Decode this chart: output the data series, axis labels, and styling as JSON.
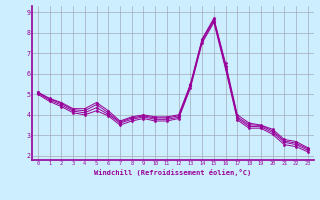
{
  "title": "",
  "xlabel": "Windchill (Refroidissement éolien,°C)",
  "ylabel": "",
  "background_color": "#cceeff",
  "grid_color": "#9999aa",
  "line_color": "#990099",
  "xlim": [
    -0.5,
    23.5
  ],
  "ylim": [
    1.8,
    9.3
  ],
  "xticks": [
    0,
    1,
    2,
    3,
    4,
    5,
    6,
    7,
    8,
    9,
    10,
    11,
    12,
    13,
    14,
    15,
    16,
    17,
    18,
    19,
    20,
    21,
    22,
    23
  ],
  "yticks": [
    2,
    3,
    4,
    5,
    6,
    7,
    8,
    9
  ],
  "series": [
    [
      5.1,
      4.8,
      4.6,
      4.3,
      4.3,
      4.6,
      4.2,
      3.7,
      3.9,
      4.0,
      3.9,
      3.9,
      4.0,
      5.5,
      7.7,
      8.7,
      6.5,
      4.0,
      3.6,
      3.5,
      3.3,
      2.8,
      2.7,
      2.4
    ],
    [
      5.1,
      4.78,
      4.55,
      4.25,
      4.2,
      4.5,
      4.1,
      3.65,
      3.85,
      3.95,
      3.85,
      3.85,
      3.95,
      5.45,
      7.65,
      8.65,
      6.4,
      3.9,
      3.52,
      3.48,
      3.22,
      2.73,
      2.62,
      2.35
    ],
    [
      5.05,
      4.72,
      4.48,
      4.18,
      4.1,
      4.35,
      4.02,
      3.6,
      3.78,
      3.9,
      3.78,
      3.78,
      3.88,
      5.38,
      7.58,
      8.58,
      6.32,
      3.83,
      3.44,
      3.42,
      3.14,
      2.66,
      2.55,
      2.28
    ],
    [
      5.0,
      4.65,
      4.4,
      4.1,
      4.0,
      4.2,
      3.95,
      3.5,
      3.7,
      3.82,
      3.7,
      3.7,
      3.82,
      5.3,
      7.5,
      8.5,
      6.22,
      3.75,
      3.35,
      3.35,
      3.05,
      2.55,
      2.45,
      2.2
    ]
  ]
}
